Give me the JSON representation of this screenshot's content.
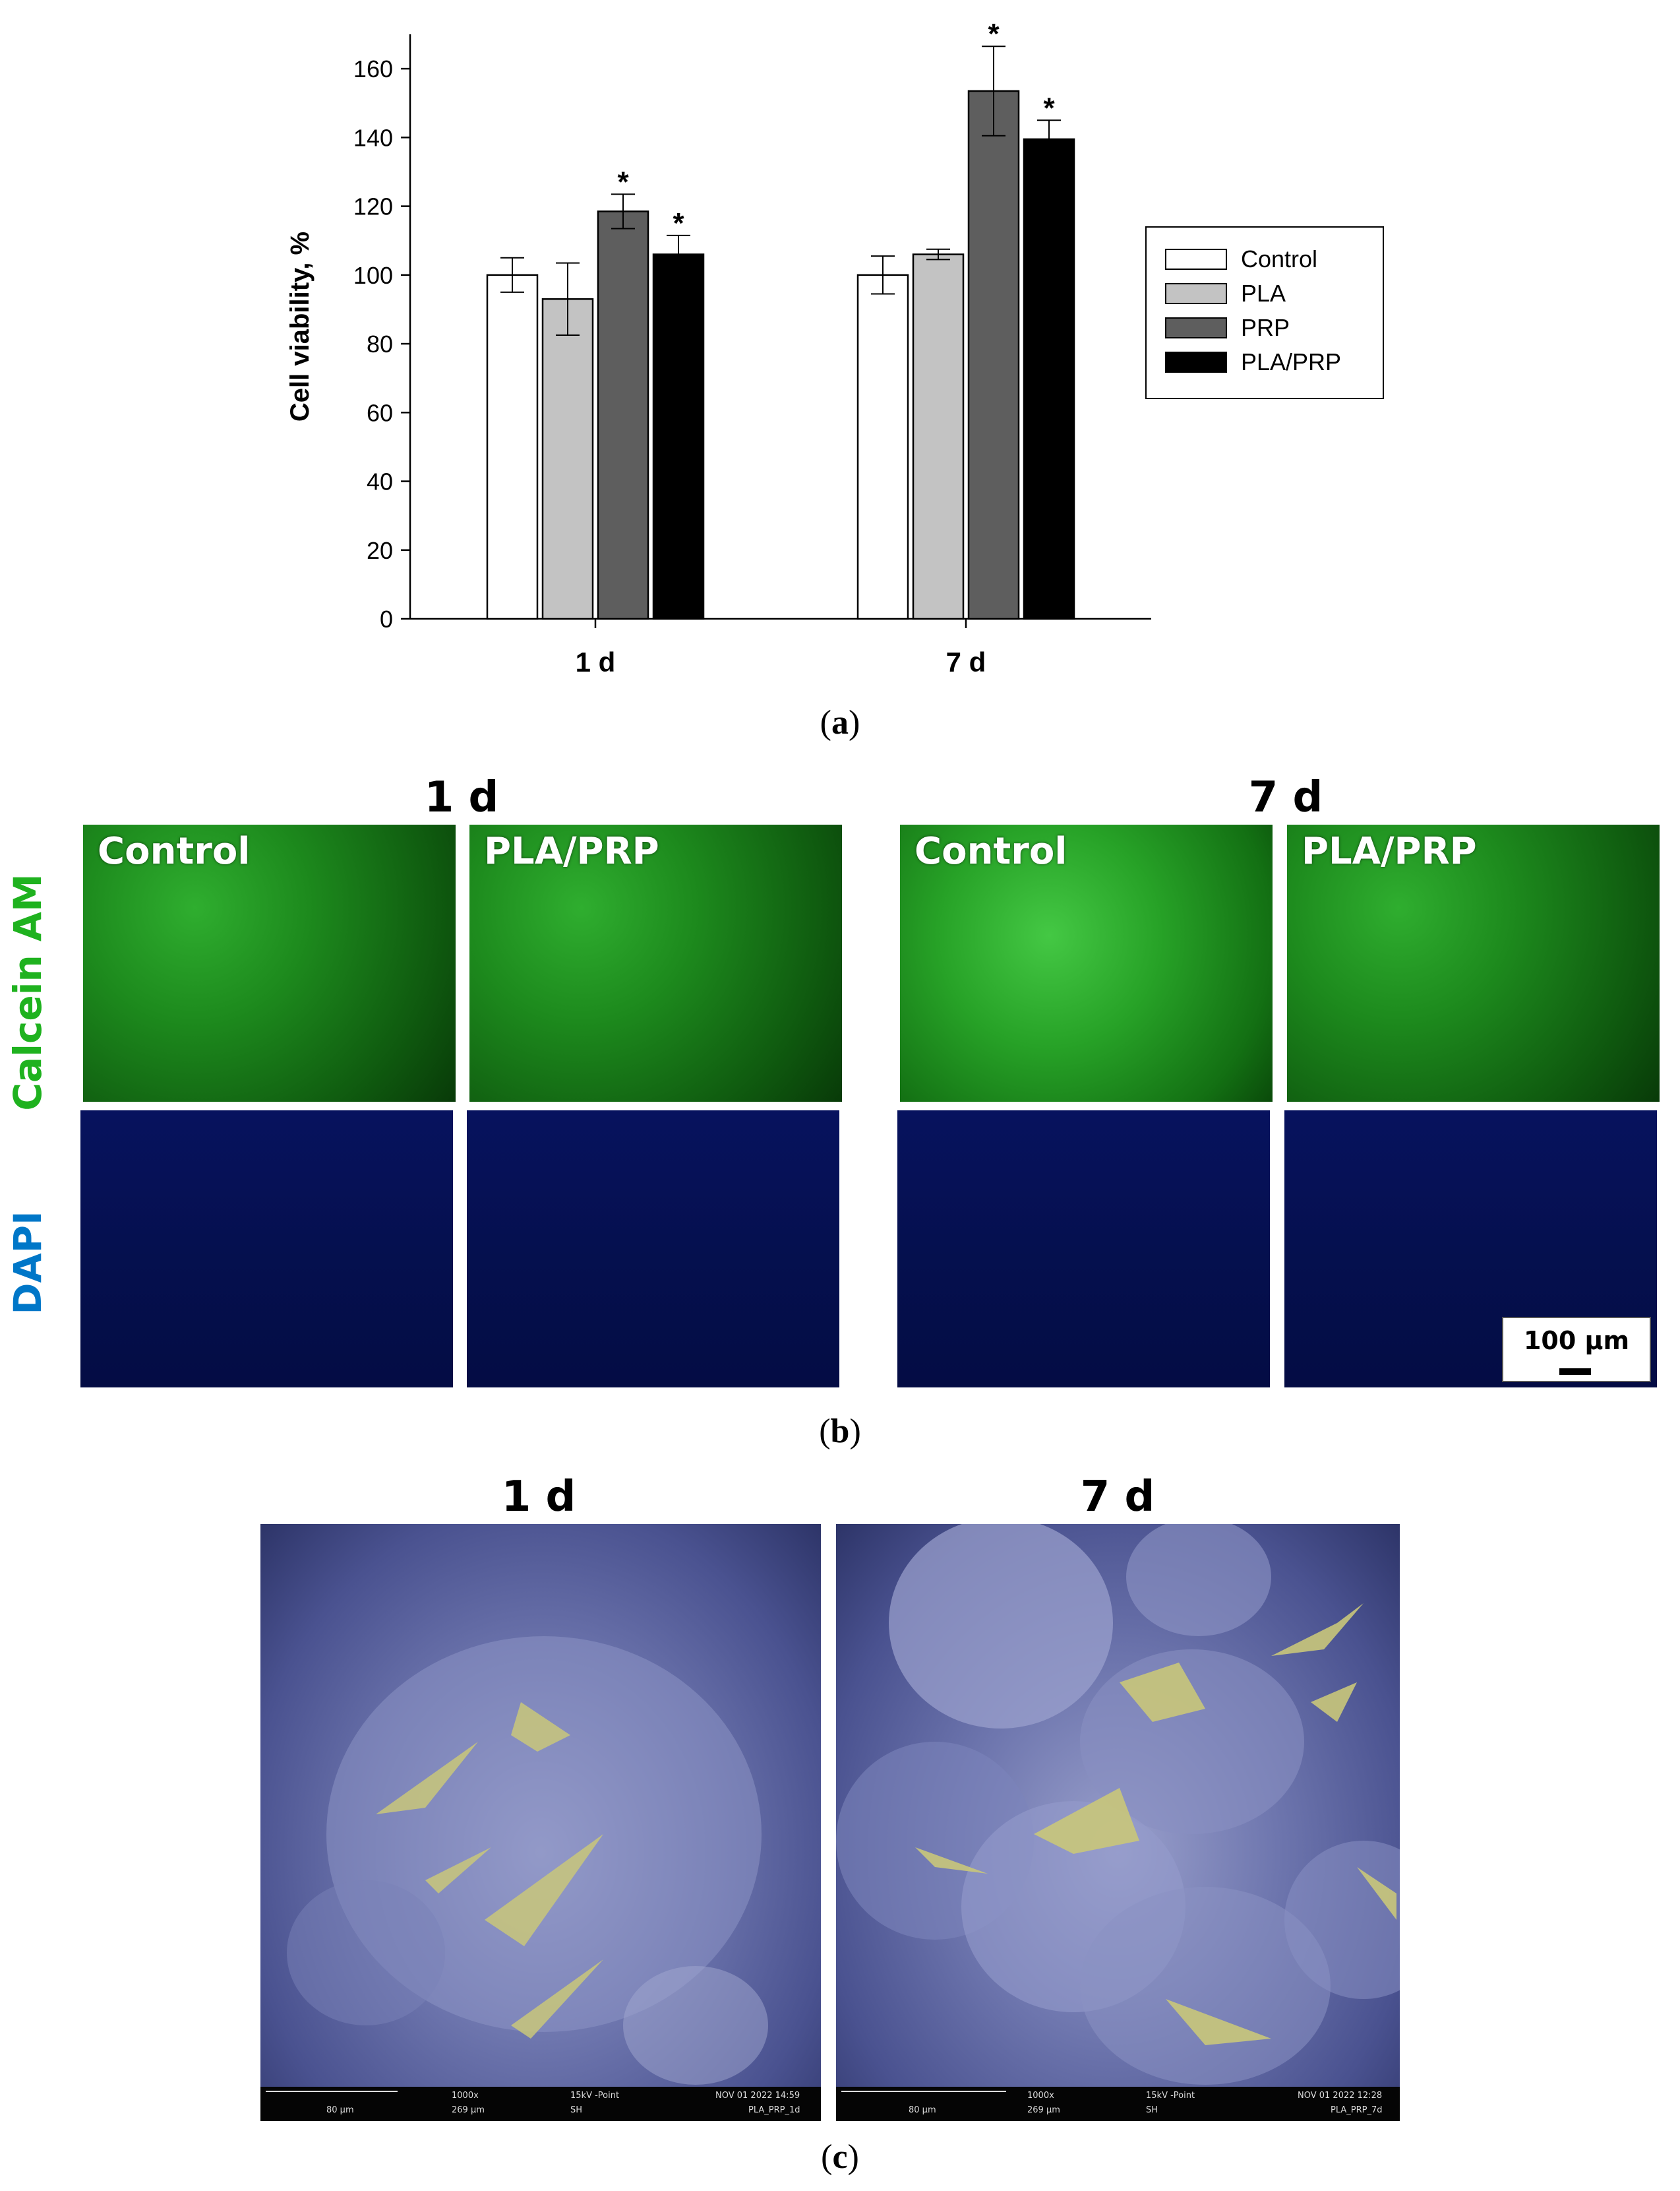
{
  "chart_data": {
    "type": "bar",
    "categories": [
      "1 d",
      "7 d"
    ],
    "series": [
      {
        "name": "Control",
        "values": [
          100,
          100
        ],
        "errors": [
          5,
          5.5
        ],
        "sig": [
          false,
          false
        ],
        "color": "#ffffff"
      },
      {
        "name": "PLA",
        "values": [
          93,
          106
        ],
        "errors": [
          10.5,
          1.5
        ],
        "sig": [
          false,
          false
        ],
        "color": "#c3c3c3"
      },
      {
        "name": "PRP",
        "values": [
          118.5,
          153.5
        ],
        "errors": [
          5,
          13
        ],
        "sig": [
          true,
          true
        ],
        "color": "#5e5e5e"
      },
      {
        "name": "PLA/PRP",
        "values": [
          106,
          139.5
        ],
        "errors": [
          5.5,
          5.5
        ],
        "sig": [
          true,
          true
        ],
        "color": "#000000"
      }
    ],
    "ylabel": "Cell viability, %",
    "ylim": [
      0,
      170
    ],
    "yticks": [
      0,
      20,
      40,
      60,
      80,
      100,
      120,
      140,
      160
    ],
    "sig_marker": "*",
    "legend_position": "right"
  },
  "labels": {
    "panel_a": "a",
    "panel_b": "b",
    "panel_c": "c"
  },
  "fluorescence": {
    "days": [
      "1 d",
      "7 d"
    ],
    "row_labels": [
      "Calcein AM",
      "DAPI"
    ],
    "tile_labels": [
      "Control",
      "PLA/PRP",
      "Control",
      "PLA/PRP"
    ],
    "scale_bar": "100 µm",
    "colors": {
      "calcein": "#1fb21f",
      "dapi": "#0077c8"
    }
  },
  "sem": {
    "days": [
      "1 d",
      "7 d"
    ],
    "images": [
      {
        "scale": "80 µm",
        "mag": "1000x",
        "hfw": "269 µm",
        "kv": "15kV -Point",
        "mode": "SH",
        "date": "NOV 01 2022 14:59",
        "name": "PLA_PRP_1d"
      },
      {
        "scale": "80 µm",
        "mag": "1000x",
        "hfw": "269 µm",
        "kv": "15kV -Point",
        "mode": "SH",
        "date": "NOV 01 2022 12:28",
        "name": "PLA_PRP_7d"
      }
    ]
  }
}
